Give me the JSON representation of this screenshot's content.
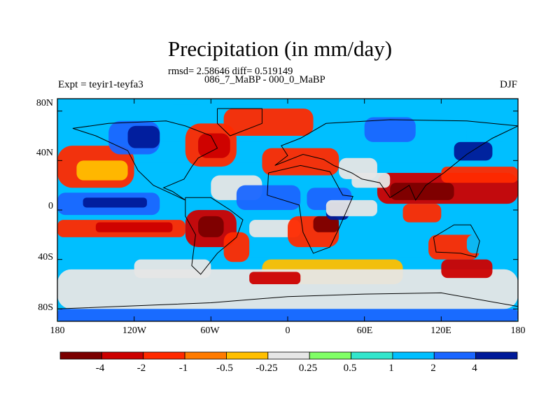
{
  "chart_data": {
    "type": "heatmap",
    "title": "Precipitation (in mm/day)",
    "stats_line": "rmsd= 2.58646 diff= 0.519149",
    "comparison": "086_7_MaBP - 000_0_MaBP",
    "experiment": "Expt = teyir1-teyfa3",
    "season": "DJF",
    "x_tick_labels": [
      "180",
      "120W",
      "60W",
      "0",
      "60E",
      "120E",
      "180"
    ],
    "y_tick_labels": [
      "80N",
      "40N",
      "0",
      "40S",
      "80S"
    ],
    "xlim": [
      -180,
      180
    ],
    "ylim": [
      -90,
      90
    ],
    "colorbar": {
      "levels": [
        "-4",
        "-2",
        "-1",
        "-0.5",
        "-0.25",
        "0.25",
        "0.5",
        "1",
        "2",
        "4"
      ],
      "colors": [
        "#7b0000",
        "#cc0000",
        "#ff2a00",
        "#ff7b00",
        "#ffbf00",
        "#e6e6e6",
        "#80ff66",
        "#33e6cc",
        "#00bfff",
        "#1a66ff",
        "#001a99"
      ]
    }
  }
}
